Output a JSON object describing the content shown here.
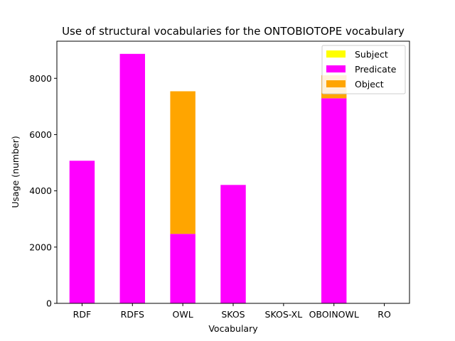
{
  "chart_data": {
    "type": "bar",
    "stacked": true,
    "title": "Use of structural vocabularies for the ONTOBIOTOPE vocabulary",
    "xlabel": "Vocabulary",
    "ylabel": "Usage (number)",
    "categories": [
      "RDF",
      "RDFS",
      "OWL",
      "SKOS",
      "SKOS-XL",
      "OBOINOWL",
      "RO"
    ],
    "series": [
      {
        "name": "Subject",
        "color": "#ffff00",
        "values": [
          0,
          0,
          0,
          0,
          0,
          0,
          0
        ]
      },
      {
        "name": "Predicate",
        "color": "#ff00ff",
        "values": [
          5070,
          8870,
          2470,
          4210,
          0,
          7290,
          0
        ]
      },
      {
        "name": "Object",
        "color": "#ffa500",
        "values": [
          0,
          0,
          5070,
          0,
          0,
          820,
          0
        ]
      }
    ],
    "ylim": [
      0,
      9320
    ],
    "yticks": [
      0,
      2000,
      4000,
      6000,
      8000
    ],
    "legend_position": "top-right",
    "grid": false
  }
}
